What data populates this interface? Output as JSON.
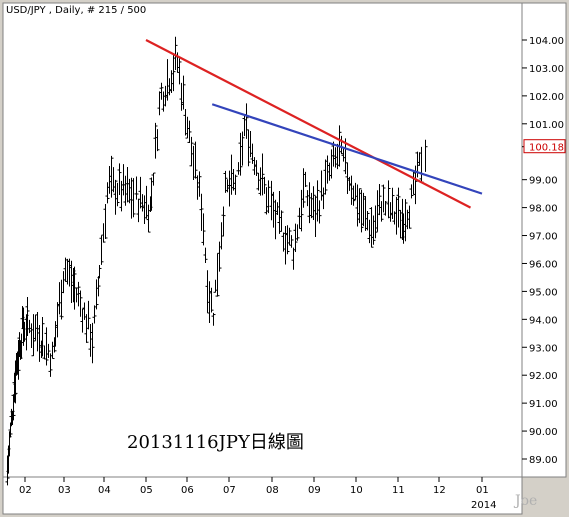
{
  "header": {
    "symbol": "USD/JPY",
    "interval": "Daily",
    "bar_info": "# 215 / 500"
  },
  "annotation": "20131116JPY日線圖",
  "watermark": "Joe",
  "colors": {
    "background": "#ffffff",
    "frame": "#d4d0c8",
    "price_bars": "#000000",
    "red_trendline": "#dd2222",
    "blue_trendline": "#3344bb",
    "last_price": "#cc0000"
  },
  "chart_data": {
    "type": "ohlc-bar",
    "title": "USD/JPY , Daily, # 215 / 500",
    "ylim": [
      88.2,
      105.0
    ],
    "y_ticks": [
      "104.00",
      "103.00",
      "102.00",
      "101.00",
      "100.18",
      "99.00",
      "98.00",
      "97.00",
      "96.00",
      "95.00",
      "94.00",
      "93.00",
      "92.00",
      "91.00",
      "90.00",
      "89.00"
    ],
    "last_price": "100.18",
    "x_tick_labels": [
      "02",
      "03",
      "04",
      "05",
      "06",
      "07",
      "08",
      "09",
      "10",
      "11",
      "12",
      "01"
    ],
    "x_year_label": "2014",
    "monthly_high_low": [
      {
        "month": "01",
        "low": 88.2,
        "high": 90.4
      },
      {
        "month": "02",
        "low": 90.6,
        "high": 94.2
      },
      {
        "month": "03",
        "low": 92.8,
        "high": 96.7
      },
      {
        "month": "04",
        "low": 92.6,
        "high": 99.9
      },
      {
        "month": "05",
        "low": 97.0,
        "high": 103.7
      },
      {
        "month": "06",
        "low": 93.8,
        "high": 102.3
      },
      {
        "month": "07",
        "low": 97.6,
        "high": 101.5
      },
      {
        "month": "08",
        "low": 95.9,
        "high": 99.4
      },
      {
        "month": "09",
        "low": 97.0,
        "high": 100.6
      },
      {
        "month": "10",
        "low": 96.6,
        "high": 99.2
      },
      {
        "month": "11",
        "low": 97.8,
        "high": 100.4
      }
    ],
    "trendlines": [
      {
        "color": "red",
        "from": {
          "x": "2013-05-01",
          "y": 104.0
        },
        "to": {
          "x": "2013-12-23",
          "y": 98.0
        }
      },
      {
        "color": "blue",
        "from": {
          "x": "2013-06-19",
          "y": 101.7
        },
        "to": {
          "x": "2014-01-26",
          "y": 98.5
        }
      }
    ]
  }
}
